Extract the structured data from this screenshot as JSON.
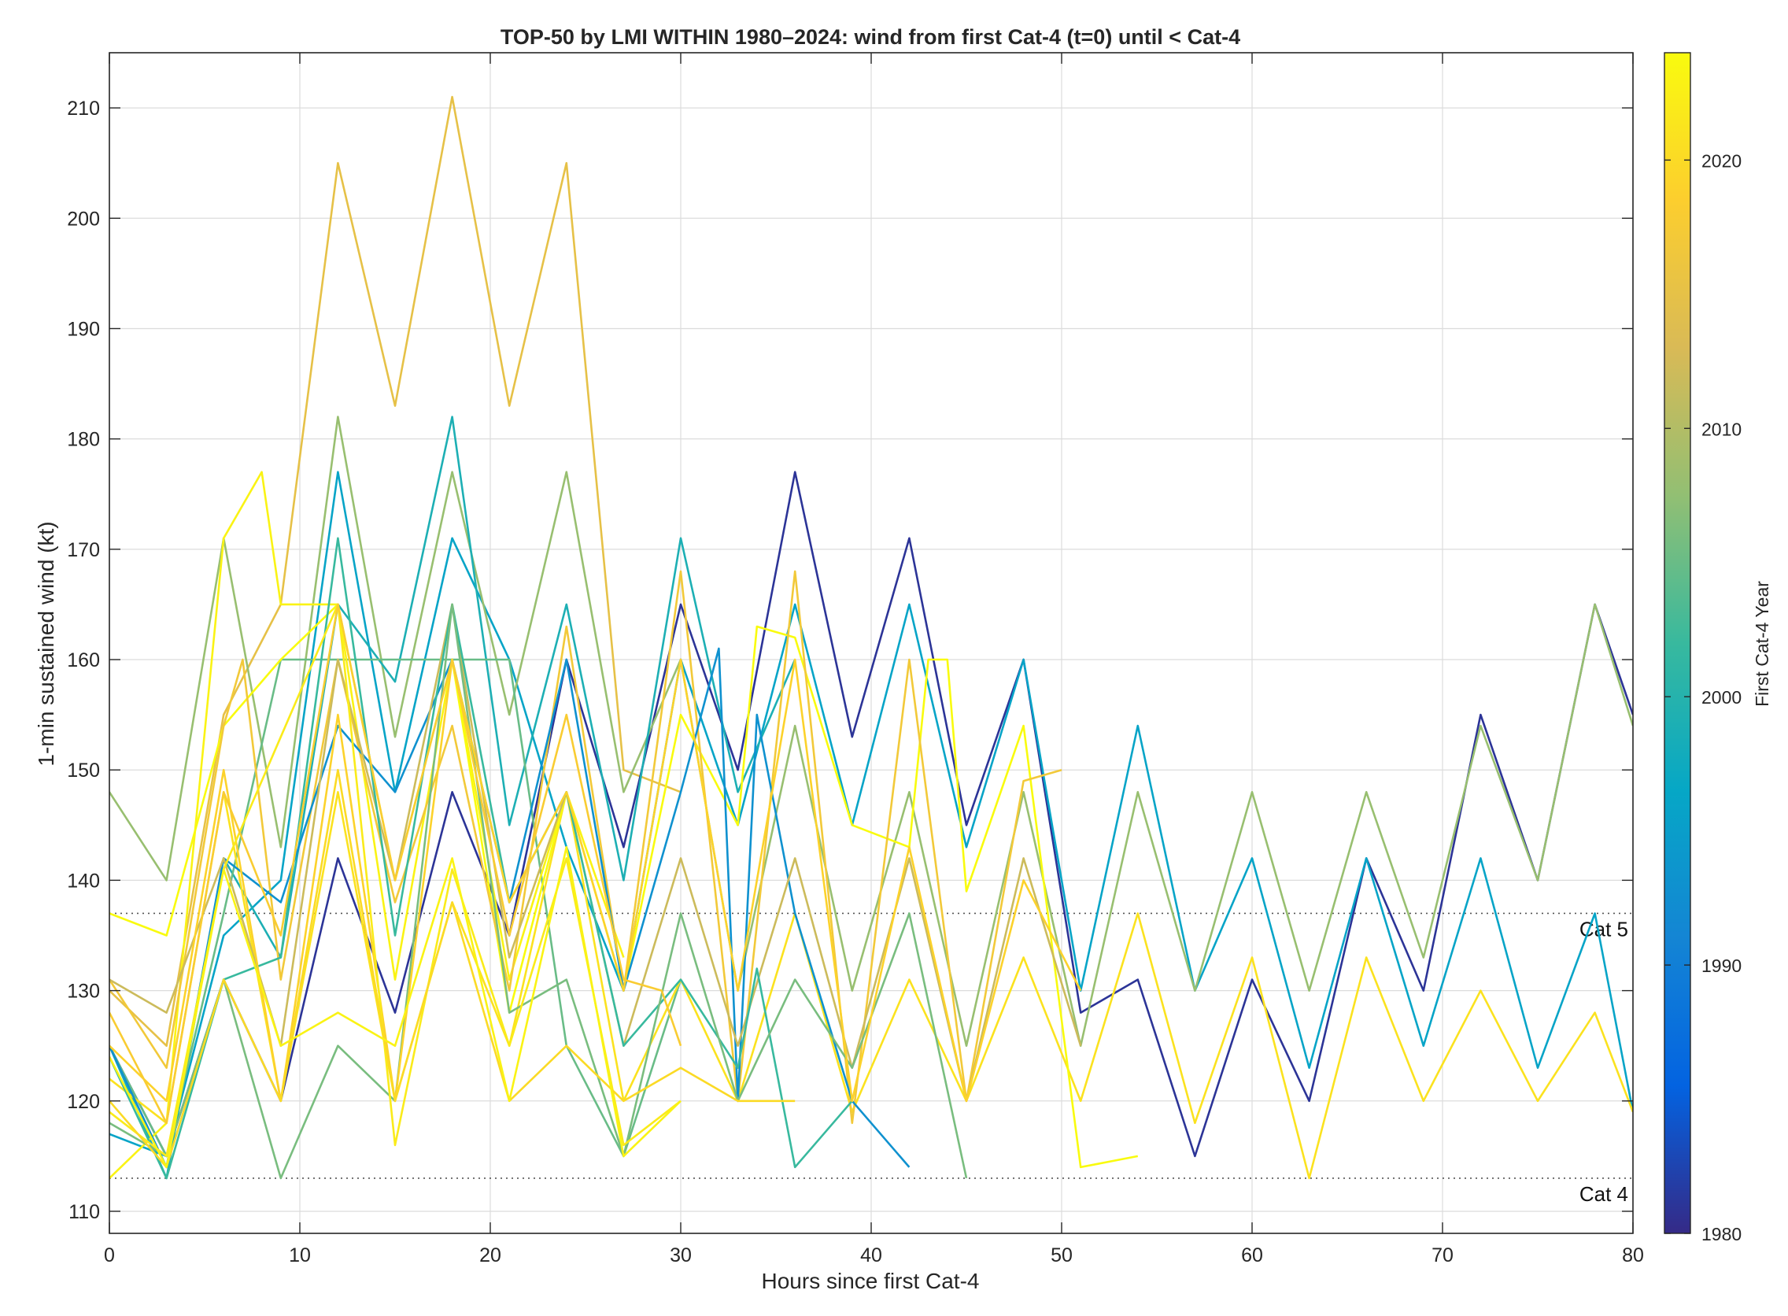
{
  "chart_data": {
    "type": "line",
    "title": "TOP-50 by LMI WITHIN 1980–2024: wind from first Cat-4 (t=0) until < Cat-4",
    "xlabel": "Hours since first Cat-4",
    "ylabel": "1-min sustained wind (kt)",
    "xlim": [
      0,
      80
    ],
    "ylim": [
      108,
      215
    ],
    "xticks": [
      0,
      10,
      20,
      30,
      40,
      50,
      60,
      70,
      80
    ],
    "yticks": [
      110,
      120,
      130,
      140,
      150,
      160,
      170,
      180,
      190,
      200,
      210
    ],
    "grid": true,
    "thresholds": [
      {
        "label": "Cat 5",
        "value": 137
      },
      {
        "label": "Cat 4",
        "value": 113
      }
    ],
    "colorbar": {
      "label": "First Cat-4 Year",
      "range": [
        1980,
        2024
      ],
      "ticks": [
        1980,
        1990,
        2000,
        2010,
        2020
      ],
      "colormap": "parula",
      "stops": [
        "#352a87",
        "#0363e1",
        "#1485d4",
        "#06a7c6",
        "#38b99e",
        "#92bf73",
        "#d9ba56",
        "#fcce2e",
        "#f9fb0e"
      ]
    },
    "series": [
      {
        "year": 2015,
        "x": [
          0,
          3,
          6,
          9,
          12,
          15,
          18,
          21,
          24,
          27,
          30
        ],
        "y": [
          130,
          125,
          155,
          165,
          205,
          183,
          211,
          183,
          205,
          150,
          148
        ]
      },
      {
        "year": 1981,
        "x": [
          0,
          3,
          6,
          9,
          12,
          15,
          18,
          21,
          24,
          27,
          30,
          33,
          36,
          39,
          42,
          45,
          48,
          51,
          54,
          57,
          60,
          63,
          66,
          69,
          72,
          75,
          78,
          80
        ],
        "y": [
          125,
          115,
          131,
          120,
          142,
          128,
          148,
          135,
          160,
          143,
          165,
          150,
          177,
          153,
          171,
          145,
          160,
          128,
          131,
          115,
          131,
          120,
          142,
          130,
          155,
          140,
          165,
          155
        ]
      },
      {
        "year": 1996,
        "x": [
          0,
          3,
          6,
          9,
          12,
          15,
          18,
          21,
          24,
          27,
          30,
          33,
          36,
          39,
          42,
          45,
          48,
          51,
          54,
          57,
          60,
          63,
          66,
          69,
          72,
          75,
          78,
          80
        ],
        "y": [
          117,
          115,
          135,
          140,
          177,
          148,
          171,
          160,
          143,
          130,
          160,
          145,
          165,
          145,
          165,
          143,
          160,
          130,
          154,
          130,
          142,
          123,
          142,
          125,
          142,
          123,
          137,
          119
        ]
      },
      {
        "year": 2008,
        "x": [
          0,
          3,
          6,
          9,
          12,
          15,
          18,
          21,
          24,
          27,
          30,
          33,
          36,
          39,
          42,
          45,
          48,
          51,
          54,
          57,
          60,
          63,
          66,
          69,
          72,
          75,
          78,
          80
        ],
        "y": [
          148,
          140,
          171,
          143,
          182,
          153,
          177,
          155,
          177,
          148,
          160,
          130,
          154,
          130,
          148,
          125,
          148,
          125,
          148,
          130,
          148,
          130,
          148,
          133,
          154,
          140,
          165,
          154
        ]
      },
      {
        "year": 1999,
        "x": [
          0,
          3,
          6,
          9,
          12,
          15,
          18,
          21,
          24,
          27,
          30,
          33,
          36
        ],
        "y": [
          125,
          113,
          142,
          133,
          165,
          158,
          182,
          145,
          165,
          140,
          171,
          148,
          160
        ]
      },
      {
        "year": 2005,
        "x": [
          0,
          3,
          6,
          9,
          12,
          15,
          18,
          21,
          24,
          27,
          30
        ],
        "y": [
          125,
          115,
          137,
          160,
          160,
          160,
          160,
          160,
          125,
          115,
          131
        ]
      },
      {
        "year": 2023,
        "x": [
          0,
          3,
          6,
          8,
          9,
          12,
          15,
          18,
          21,
          24,
          27
        ],
        "y": [
          113,
          118,
          171,
          177,
          165,
          165,
          131,
          160,
          131,
          148,
          133
        ]
      },
      {
        "year": 2021,
        "x": [
          0,
          3,
          6,
          9,
          12,
          15,
          18,
          21,
          24,
          27,
          30,
          33,
          36,
          39,
          42,
          45,
          48,
          51,
          54,
          57,
          60,
          63,
          66,
          69,
          72,
          75,
          78,
          80
        ],
        "y": [
          122,
          118,
          148,
          120,
          148,
          120,
          138,
          125,
          148,
          120,
          131,
          120,
          137,
          119,
          131,
          120,
          133,
          120,
          137,
          118,
          133,
          113,
          133,
          120,
          130,
          120,
          128,
          119
        ]
      },
      {
        "year": 2024,
        "x": [
          0,
          3,
          6,
          9,
          12,
          15,
          18,
          21,
          24,
          27,
          30,
          33,
          34,
          36,
          39,
          42,
          43,
          44,
          45,
          48,
          51,
          54
        ],
        "y": [
          137,
          135,
          154,
          160,
          165,
          140,
          160,
          128,
          148,
          130,
          155,
          145,
          163,
          162,
          145,
          143,
          160,
          160,
          139,
          154,
          114,
          115
        ]
      },
      {
        "year": 2017,
        "x": [
          0,
          3,
          6,
          7,
          9,
          12,
          15,
          18,
          21,
          24,
          27,
          30,
          33,
          36,
          39,
          42,
          45,
          48,
          50
        ],
        "y": [
          131,
          123,
          154,
          160,
          131,
          160,
          138,
          154,
          130,
          163,
          130,
          168,
          120,
          168,
          118,
          160,
          120,
          149,
          150
        ]
      },
      {
        "year": 1993,
        "x": [
          0,
          3,
          6,
          9,
          12,
          15,
          18,
          21,
          24,
          27,
          30,
          32,
          33,
          34,
          36,
          39,
          42
        ],
        "y": [
          125,
          114,
          142,
          138,
          154,
          148,
          160,
          138,
          160,
          130,
          148,
          161,
          120,
          155,
          137,
          120,
          114
        ]
      },
      {
        "year": 2012,
        "x": [
          0,
          3,
          6,
          9,
          12,
          15,
          18,
          21,
          24,
          27,
          30,
          33,
          36,
          39,
          42,
          45,
          48,
          51
        ],
        "y": [
          131,
          128,
          142,
          125,
          160,
          140,
          165,
          133,
          148,
          125,
          142,
          125,
          142,
          123,
          142,
          120,
          142,
          125
        ]
      },
      {
        "year": 2002,
        "x": [
          0,
          3,
          6,
          9,
          12,
          15,
          18,
          21,
          24,
          27,
          30,
          33,
          34,
          36,
          39
        ],
        "y": [
          124,
          113,
          131,
          133,
          171,
          135,
          165,
          138,
          148,
          125,
          131,
          123,
          132,
          114,
          120
        ]
      },
      {
        "year": 2006,
        "x": [
          0,
          3,
          6,
          9,
          12,
          15,
          18,
          21,
          24,
          27,
          30,
          33,
          36,
          39,
          42,
          45
        ],
        "y": [
          118,
          115,
          131,
          113,
          125,
          120,
          165,
          128,
          131,
          115,
          137,
          120,
          131,
          123,
          137,
          113
        ]
      },
      {
        "year": 2019,
        "x": [
          0,
          3,
          6,
          9,
          12,
          15,
          18,
          21,
          24,
          27,
          30,
          33,
          36,
          39,
          42,
          45,
          48,
          51
        ],
        "y": [
          125,
          120,
          150,
          120,
          155,
          120,
          160,
          138,
          148,
          130,
          160,
          130,
          160,
          120,
          143,
          120,
          140,
          130
        ]
      },
      {
        "year": 2022,
        "x": [
          0,
          3,
          6,
          9,
          12,
          15,
          18,
          21,
          24,
          27,
          30
        ],
        "y": [
          119,
          115,
          141,
          153,
          165,
          116,
          141,
          125,
          142,
          116,
          120
        ]
      },
      {
        "year": 2020,
        "x": [
          0,
          3,
          6,
          9,
          12,
          15,
          18,
          21,
          24,
          27,
          30,
          33,
          36
        ],
        "y": [
          120,
          114,
          131,
          120,
          150,
          120,
          138,
          120,
          125,
          120,
          123,
          120,
          120
        ]
      },
      {
        "year": 2018,
        "x": [
          0,
          3,
          6,
          9,
          12,
          15,
          18,
          21,
          24,
          27,
          29,
          30
        ],
        "y": [
          128,
          118,
          148,
          135,
          165,
          140,
          160,
          135,
          155,
          131,
          130,
          125
        ]
      },
      {
        "year": 2023,
        "x": [
          0,
          3,
          6,
          9,
          12,
          15,
          18,
          21,
          24,
          27,
          30
        ],
        "y": [
          124,
          114,
          141,
          125,
          128,
          125,
          142,
          120,
          143,
          115,
          120
        ]
      }
    ]
  }
}
